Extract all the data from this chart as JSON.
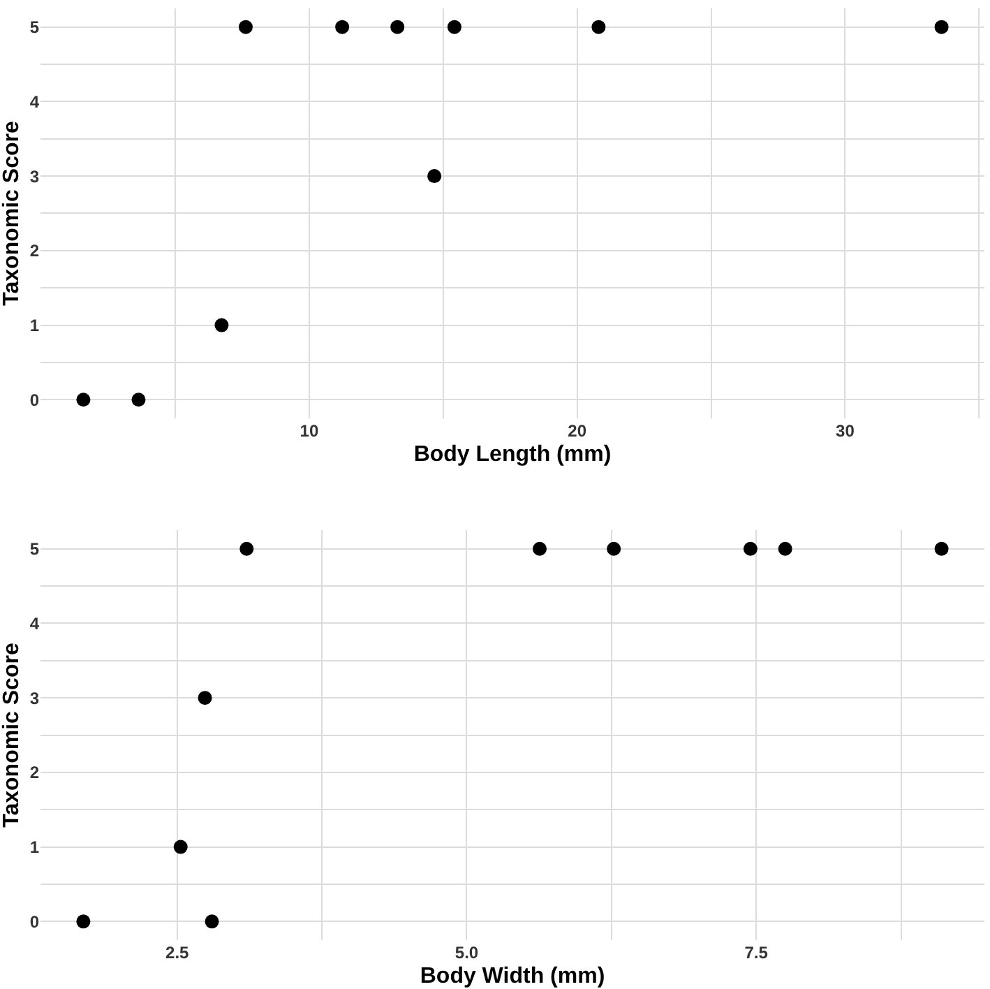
{
  "chart_data": [
    {
      "type": "scatter",
      "xlabel": "Body Length (mm)",
      "ylabel": "Taxonomic Score",
      "marker": "circle",
      "grid": true,
      "series": [
        {
          "color": "#000000",
          "x": [
            1.57,
            3.63,
            6.73,
            7.63,
            11.23,
            13.29,
            14.67,
            15.42,
            20.8,
            33.6
          ],
          "values": [
            0,
            0,
            1,
            5,
            5,
            5,
            3,
            5,
            5,
            5
          ]
        }
      ],
      "xlim": [
        -0.03,
        35.2
      ],
      "ylim": [
        -0.25,
        5.25
      ],
      "xticks": [
        {
          "value": 5,
          "label": null
        },
        10,
        {
          "value": 15,
          "label": null
        },
        20,
        {
          "value": 25,
          "label": null
        },
        30,
        {
          "value": 35,
          "label": null
        }
      ],
      "yticks": [
        0,
        {
          "value": 0.5,
          "label": null
        },
        1,
        {
          "value": 1.5,
          "label": null
        },
        2,
        {
          "value": 2.5,
          "label": null
        },
        3,
        {
          "value": 3.5,
          "label": null
        },
        4,
        {
          "value": 4.5,
          "label": null
        },
        5
      ]
    },
    {
      "type": "scatter",
      "xlabel": "Body Width (mm)",
      "ylabel": "Taxonomic Score",
      "marker": "circle",
      "grid": true,
      "series": [
        {
          "color": "#000000",
          "x": [
            1.69,
            2.53,
            2.74,
            2.8,
            3.1,
            5.63,
            6.27,
            7.45,
            7.75,
            9.1
          ],
          "values": [
            0,
            1,
            3,
            0,
            5,
            5,
            5,
            5,
            5,
            5
          ]
        }
      ],
      "xlim": [
        1.32,
        9.47
      ],
      "ylim": [
        -0.25,
        5.25
      ],
      "xticks": [
        {
          "value": 2.5,
          "label": "2.5"
        },
        {
          "value": 3.75,
          "label": null
        },
        {
          "value": 5,
          "label": "5.0"
        },
        {
          "value": 6.25,
          "label": null
        },
        {
          "value": 7.5,
          "label": "7.5"
        },
        {
          "value": 8.75,
          "label": null
        }
      ],
      "yticks": [
        0,
        {
          "value": 0.5,
          "label": null
        },
        1,
        {
          "value": 1.5,
          "label": null
        },
        2,
        {
          "value": 2.5,
          "label": null
        },
        3,
        {
          "value": 3.5,
          "label": null
        },
        4,
        {
          "value": 4.5,
          "label": null
        },
        5
      ]
    }
  ]
}
